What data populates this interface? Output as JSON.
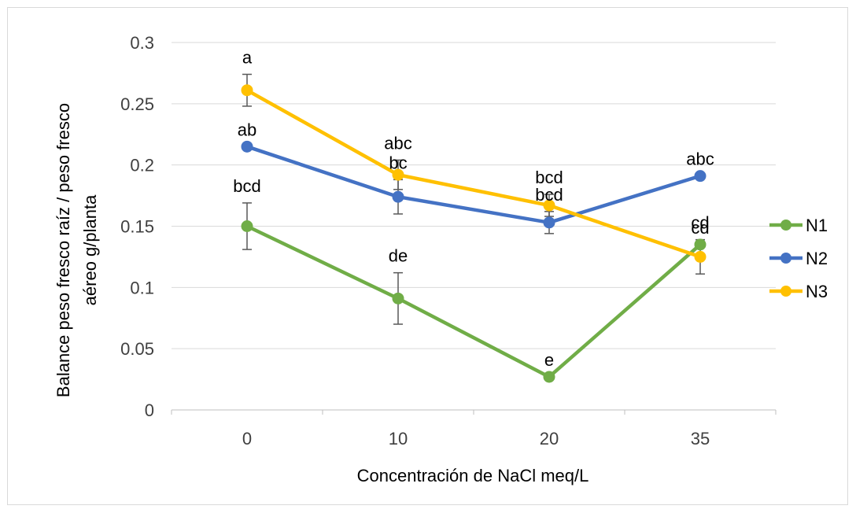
{
  "chart_data": {
    "type": "line",
    "title": "",
    "xlabel": "Concentración de NaCl meq/L",
    "ylabel_lines": [
      "Balance peso fresco raíz / peso fresco",
      "aéreo  g/planta"
    ],
    "categories": [
      "0",
      "10",
      "20",
      "35"
    ],
    "ylim": [
      0,
      0.3
    ],
    "yticks": [
      "0",
      "0.05",
      "0.1",
      "0.15",
      "0.2",
      "0.25",
      "0.3"
    ],
    "grid": true,
    "legend_position": "right",
    "series": [
      {
        "name": "N1",
        "color": "#70ad47",
        "values": [
          0.15,
          0.091,
          0.027,
          0.135
        ],
        "errors": [
          0.019,
          0.021,
          0.0,
          0.0
        ],
        "labels": [
          "bcd",
          "de",
          "e",
          "cd"
        ]
      },
      {
        "name": "N2",
        "color": "#4472c4",
        "values": [
          0.215,
          0.174,
          0.153,
          0.191
        ],
        "errors": [
          0.0,
          0.014,
          0.009,
          0.0
        ],
        "labels": [
          "ab",
          "bc",
          "bcd",
          "abc"
        ]
      },
      {
        "name": "N3",
        "color": "#ffc000",
        "values": [
          0.261,
          0.192,
          0.167,
          0.125
        ],
        "errors": [
          0.013,
          0.012,
          0.009,
          0.014
        ],
        "labels": [
          "a",
          "abc",
          "bcd",
          "cd"
        ]
      }
    ]
  }
}
